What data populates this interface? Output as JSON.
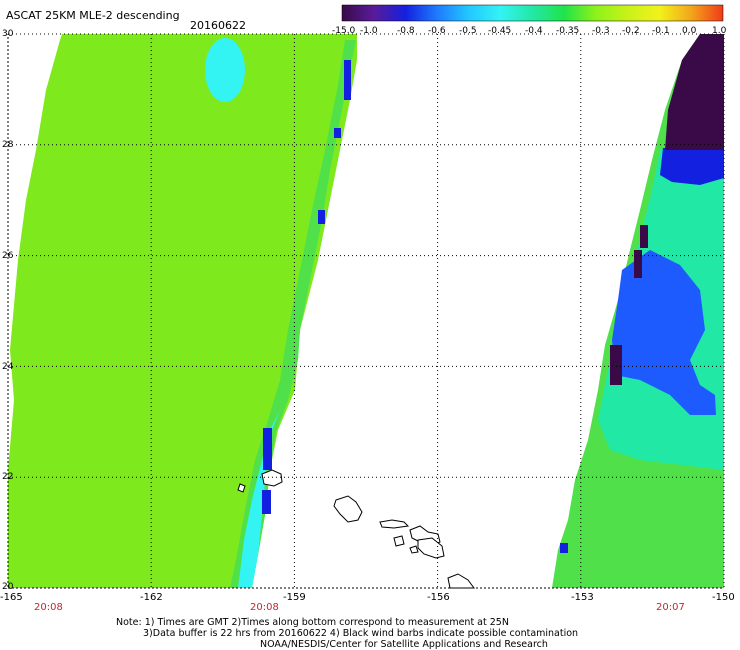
{
  "header": {
    "title": "ASCAT 25KM MLE-2 descending",
    "date": "20160622"
  },
  "colorbar": {
    "ticks": [
      "-15.0",
      "-1.0",
      "-0.8",
      "-0.6",
      "-0.5",
      "-0.45",
      "-0.4",
      "-0.35",
      "-0.3",
      "-0.2",
      "-0.1",
      "0.0",
      "1.0"
    ],
    "colors": [
      "#3a0a48",
      "#5a1b99",
      "#1420e0",
      "#1e7bff",
      "#22c8ff",
      "#33f3f3",
      "#22e8a6",
      "#20e34a",
      "#8ef21a",
      "#c8f21a",
      "#f2f21a",
      "#f2a51a",
      "#f23a1a"
    ]
  },
  "map": {
    "lat_min": 20,
    "lat_max": 30,
    "lon_min": -165,
    "lon_max": -150,
    "y_ticks": [
      "30",
      "28",
      "26",
      "24",
      "22",
      "20"
    ],
    "x_ticks": [
      "-165",
      "-162",
      "-159",
      "-156",
      "-153",
      "-150"
    ],
    "pass_times": [
      "20:08",
      "20:08",
      "20:07"
    ],
    "field_colors": {
      "green": "#7eea1e",
      "green_light": "#96f02a",
      "green_mid": "#4fe04a",
      "teal": "#22e8a6",
      "cyan": "#33f3f3",
      "blue": "#1e5bff",
      "blue_dark": "#1420e0",
      "purple": "#3a0a48"
    }
  },
  "notes": {
    "line1": "Note: 1) Times are GMT 2)Times along bottom correspond to measurement at 25N",
    "line2": "3)Data buffer is 22 hrs from 20160622 4) Black wind barbs indicate possible contamination",
    "line3": "NOAA/NESDIS/Center for Satellite Applications and Research"
  }
}
